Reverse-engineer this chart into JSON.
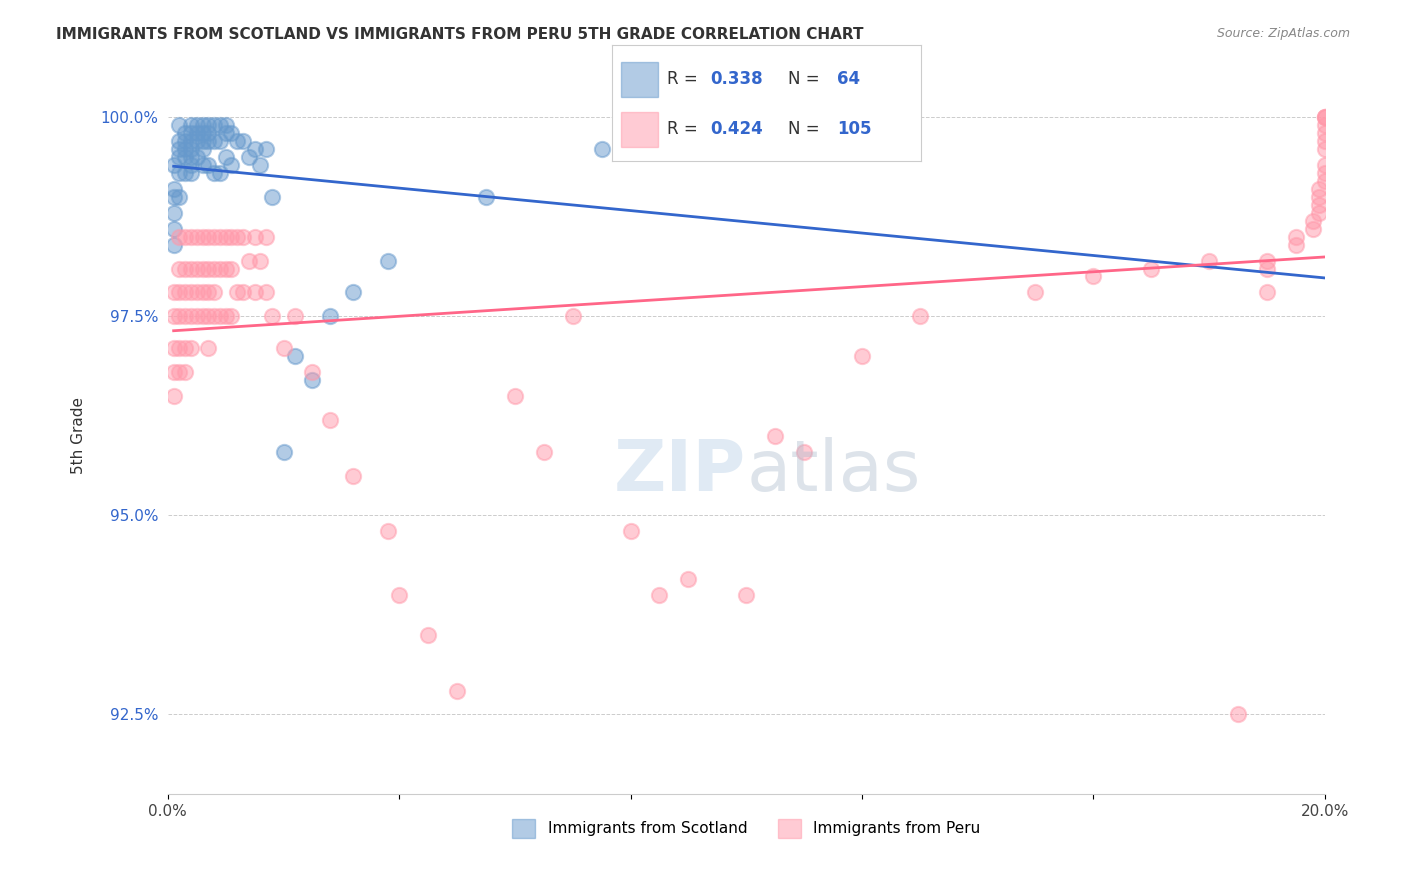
{
  "title": "IMMIGRANTS FROM SCOTLAND VS IMMIGRANTS FROM PERU 5TH GRADE CORRELATION CHART",
  "source": "Source: ZipAtlas.com",
  "xlabel": "",
  "ylabel": "5th Grade",
  "xlim": [
    0.0,
    0.2
  ],
  "ylim": [
    0.915,
    1.005
  ],
  "xticks": [
    0.0,
    0.04,
    0.08,
    0.12,
    0.16,
    0.2
  ],
  "xticklabels": [
    "0.0%",
    "",
    "",
    "",
    "",
    "20.0%"
  ],
  "yticks": [
    0.925,
    0.95,
    0.975,
    1.0
  ],
  "yticklabels": [
    "92.5%",
    "95.0%",
    "97.5%",
    "100.0%"
  ],
  "scotland_color": "#6699CC",
  "peru_color": "#FF99AA",
  "scotland_line_color": "#3366CC",
  "peru_line_color": "#FF6688",
  "scotland_R": 0.338,
  "scotland_N": 64,
  "peru_R": 0.424,
  "peru_N": 105,
  "legend_R_color": "#3366CC",
  "watermark": "ZIPatlas",
  "watermark_color": "#CCDDEE",
  "scotland_x": [
    0.001,
    0.001,
    0.001,
    0.001,
    0.001,
    0.001,
    0.002,
    0.002,
    0.002,
    0.002,
    0.002,
    0.002,
    0.003,
    0.003,
    0.003,
    0.003,
    0.003,
    0.004,
    0.004,
    0.004,
    0.004,
    0.004,
    0.004,
    0.004,
    0.005,
    0.005,
    0.005,
    0.005,
    0.006,
    0.006,
    0.006,
    0.006,
    0.006,
    0.007,
    0.007,
    0.007,
    0.007,
    0.008,
    0.008,
    0.008,
    0.009,
    0.009,
    0.009,
    0.01,
    0.01,
    0.01,
    0.011,
    0.011,
    0.012,
    0.013,
    0.014,
    0.015,
    0.016,
    0.017,
    0.018,
    0.02,
    0.022,
    0.025,
    0.028,
    0.032,
    0.038,
    0.055,
    0.075,
    0.12
  ],
  "scotland_y": [
    0.994,
    0.991,
    0.99,
    0.988,
    0.986,
    0.984,
    0.999,
    0.997,
    0.996,
    0.995,
    0.993,
    0.99,
    0.998,
    0.997,
    0.996,
    0.995,
    0.993,
    0.999,
    0.998,
    0.997,
    0.996,
    0.995,
    0.994,
    0.993,
    0.999,
    0.998,
    0.997,
    0.995,
    0.999,
    0.998,
    0.997,
    0.996,
    0.994,
    0.999,
    0.998,
    0.997,
    0.994,
    0.999,
    0.997,
    0.993,
    0.999,
    0.997,
    0.993,
    0.999,
    0.998,
    0.995,
    0.998,
    0.994,
    0.997,
    0.997,
    0.995,
    0.996,
    0.994,
    0.996,
    0.99,
    0.958,
    0.97,
    0.967,
    0.975,
    0.978,
    0.982,
    0.99,
    0.996,
    0.999
  ],
  "peru_x": [
    0.001,
    0.001,
    0.001,
    0.001,
    0.001,
    0.002,
    0.002,
    0.002,
    0.002,
    0.002,
    0.002,
    0.003,
    0.003,
    0.003,
    0.003,
    0.003,
    0.003,
    0.004,
    0.004,
    0.004,
    0.004,
    0.004,
    0.005,
    0.005,
    0.005,
    0.005,
    0.006,
    0.006,
    0.006,
    0.006,
    0.007,
    0.007,
    0.007,
    0.007,
    0.007,
    0.008,
    0.008,
    0.008,
    0.008,
    0.009,
    0.009,
    0.009,
    0.01,
    0.01,
    0.01,
    0.011,
    0.011,
    0.011,
    0.012,
    0.012,
    0.013,
    0.013,
    0.014,
    0.015,
    0.015,
    0.016,
    0.017,
    0.017,
    0.018,
    0.02,
    0.022,
    0.025,
    0.028,
    0.032,
    0.038,
    0.04,
    0.045,
    0.05,
    0.06,
    0.065,
    0.07,
    0.08,
    0.085,
    0.09,
    0.1,
    0.105,
    0.11,
    0.12,
    0.13,
    0.15,
    0.16,
    0.17,
    0.18,
    0.185,
    0.19,
    0.19,
    0.19,
    0.195,
    0.195,
    0.198,
    0.198,
    0.199,
    0.199,
    0.199,
    0.199,
    0.2,
    0.2,
    0.2,
    0.2,
    0.2,
    0.2,
    0.2,
    0.2,
    0.2,
    0.2
  ],
  "peru_y": [
    0.978,
    0.975,
    0.971,
    0.968,
    0.965,
    0.985,
    0.981,
    0.978,
    0.975,
    0.971,
    0.968,
    0.985,
    0.981,
    0.978,
    0.975,
    0.971,
    0.968,
    0.985,
    0.981,
    0.978,
    0.975,
    0.971,
    0.985,
    0.981,
    0.978,
    0.975,
    0.985,
    0.981,
    0.978,
    0.975,
    0.985,
    0.981,
    0.978,
    0.975,
    0.971,
    0.985,
    0.981,
    0.978,
    0.975,
    0.985,
    0.981,
    0.975,
    0.985,
    0.981,
    0.975,
    0.985,
    0.981,
    0.975,
    0.985,
    0.978,
    0.985,
    0.978,
    0.982,
    0.985,
    0.978,
    0.982,
    0.985,
    0.978,
    0.975,
    0.971,
    0.975,
    0.968,
    0.962,
    0.955,
    0.948,
    0.94,
    0.935,
    0.928,
    0.965,
    0.958,
    0.975,
    0.948,
    0.94,
    0.942,
    0.94,
    0.96,
    0.958,
    0.97,
    0.975,
    0.978,
    0.98,
    0.981,
    0.982,
    0.925,
    0.978,
    0.981,
    0.982,
    0.984,
    0.985,
    0.986,
    0.987,
    0.988,
    0.989,
    0.99,
    0.991,
    0.992,
    0.993,
    0.994,
    0.996,
    0.997,
    0.998,
    0.999,
    1.0,
    1.0,
    1.0
  ]
}
